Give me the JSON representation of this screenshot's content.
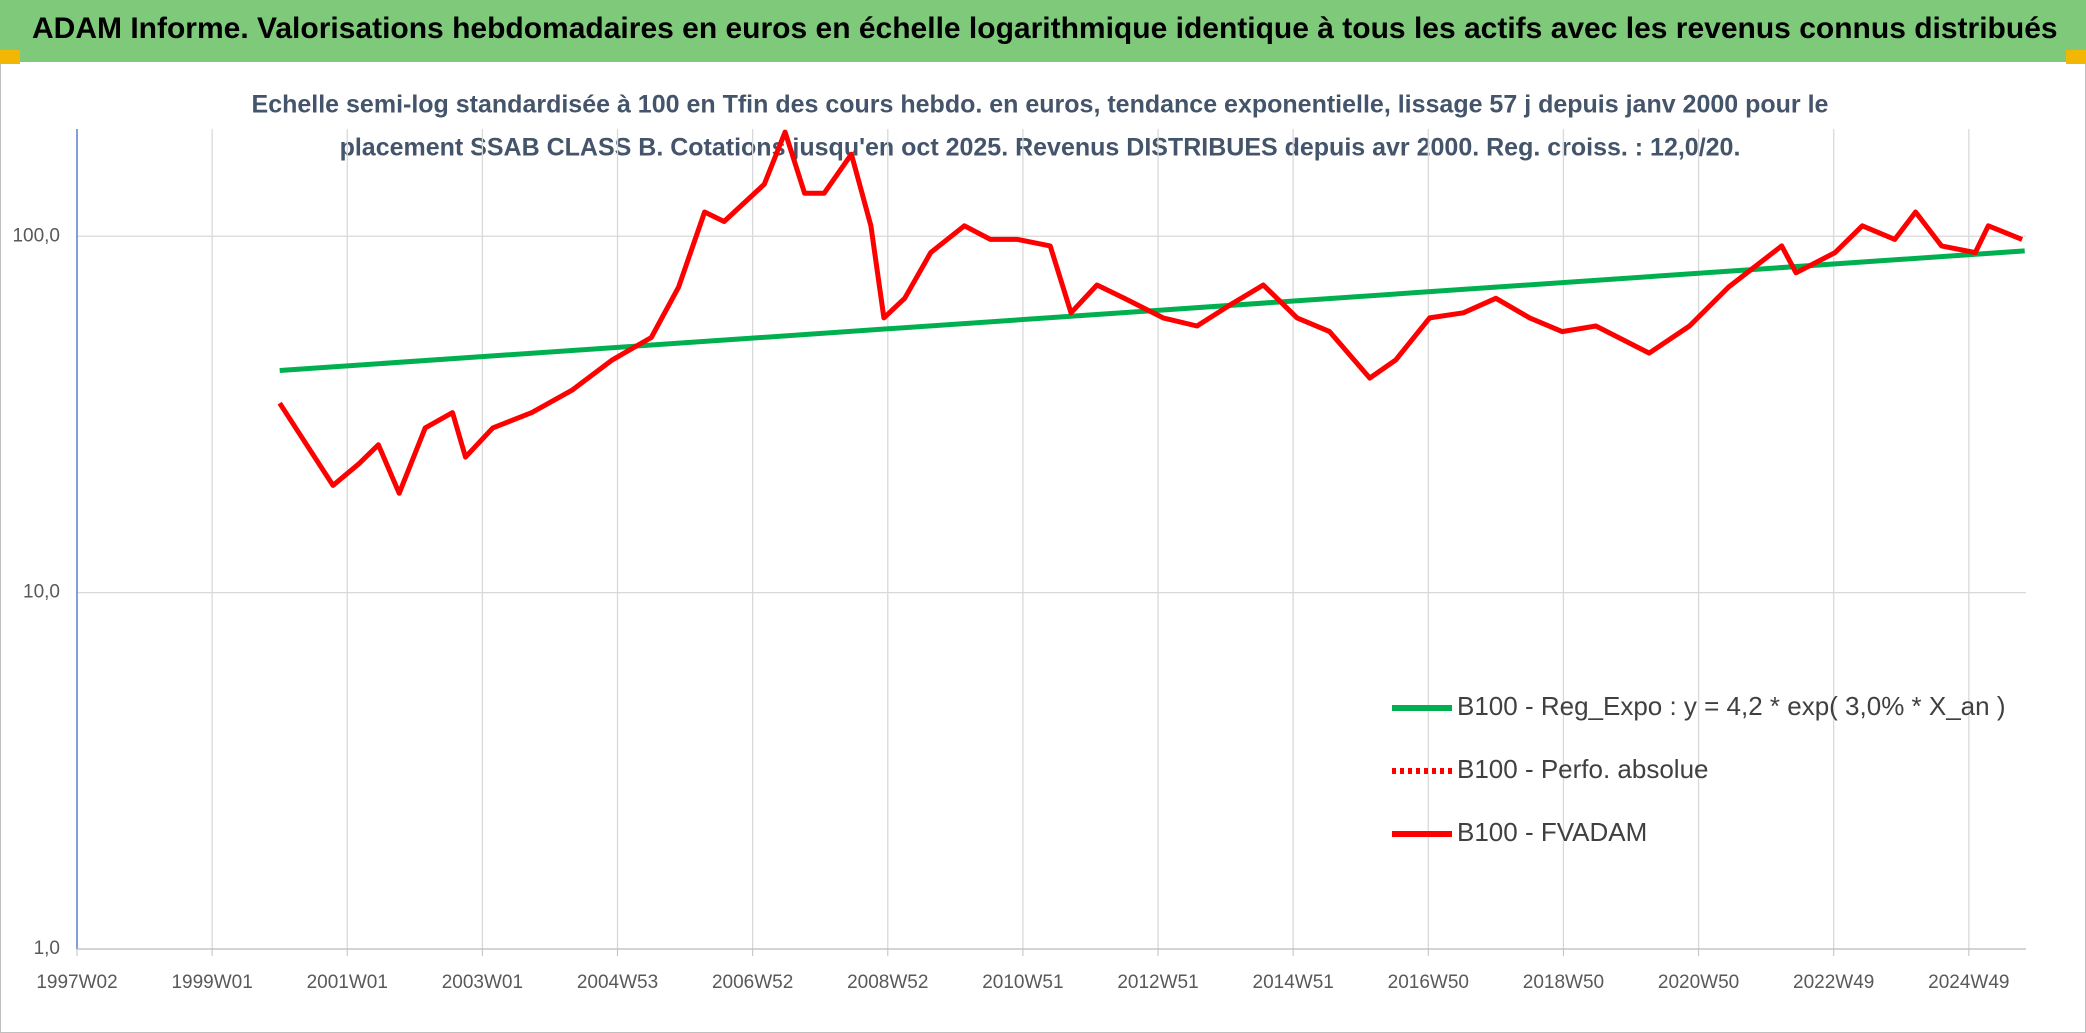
{
  "chart_data": {
    "type": "line",
    "title": "ADAM Informe. Valorisations hebdomadaires en euros en échelle logarithmique identique à tous les actifs avec les revenus connus distribués",
    "subtitle": [
      "Echelle semi-log standardisée à 100 en Tfin des cours hebdo. en euros, tendance exponentielle, lissage 57 j depuis janv 2000 pour le",
      "placement SSAB CLASS B. Cotations jusqu'en oct 2025. Revenus DISTRIBUES depuis avr 2000. Reg. croiss. : 12,0/20."
    ],
    "log_scale": true,
    "grid": true,
    "legend": "right",
    "xlim": [
      0,
      1500
    ],
    "xticks": [
      {
        "value": 0,
        "label": "1997W02"
      },
      {
        "value": 104,
        "label": "1999W01"
      },
      {
        "value": 208,
        "label": "2001W01"
      },
      {
        "value": 312,
        "label": "2003W01"
      },
      {
        "value": 416,
        "label": "2004W53"
      },
      {
        "value": 520,
        "label": "2006W52"
      },
      {
        "value": 624,
        "label": "2008W52"
      },
      {
        "value": 728,
        "label": "2010W51"
      },
      {
        "value": 832,
        "label": "2012W51"
      },
      {
        "value": 936,
        "label": "2014W51"
      },
      {
        "value": 1040,
        "label": "2016W50"
      },
      {
        "value": 1144,
        "label": "2018W50"
      },
      {
        "value": 1248,
        "label": "2020W50"
      },
      {
        "value": 1352,
        "label": "2022W49"
      },
      {
        "value": 1456,
        "label": "2024W49"
      }
    ],
    "ylim": [
      1,
      200
    ],
    "yticks": [
      {
        "value": 1,
        "label": "1,0"
      },
      {
        "value": 10,
        "label": "10,0"
      },
      {
        "value": 100,
        "label": "100,0"
      }
    ],
    "series": [
      {
        "name": "B100 - Reg_Expo : y = 4,2 * exp( 3,0% *  X_an )",
        "color": "#00b050",
        "style": "solid",
        "x": [
          156,
          1499
        ],
        "values": [
          42,
          91
        ]
      },
      {
        "name": "B100 - Perfo. absolue",
        "color": "#ff0000",
        "style": "dotted",
        "x": [],
        "values": []
      },
      {
        "name": "B100 - FVADAM",
        "color": "#ff0000",
        "style": "solid",
        "x": [
          156,
          171,
          197,
          217,
          232,
          248,
          268,
          289,
          299,
          320,
          350,
          381,
          412,
          442,
          463,
          483,
          498,
          529,
          545,
          560,
          575,
          596,
          611,
          621,
          637,
          657,
          683,
          703,
          724,
          749,
          765,
          785,
          806,
          836,
          862,
          887,
          913,
          939,
          964,
          995,
          1015,
          1041,
          1067,
          1092,
          1118,
          1143,
          1169,
          1210,
          1241,
          1271,
          1312,
          1323,
          1353,
          1374,
          1399,
          1415,
          1435,
          1461,
          1471,
          1497
        ],
        "values": [
          34,
          28,
          20,
          23,
          26,
          19,
          29,
          32,
          24,
          29,
          32,
          37,
          45,
          52,
          72,
          117,
          110,
          140,
          196,
          132,
          132,
          170,
          107,
          59,
          67,
          90,
          107,
          98,
          98,
          94,
          61,
          73,
          67,
          59,
          56,
          64,
          73,
          59,
          54,
          40,
          45,
          59,
          61,
          67,
          59,
          54,
          56,
          47,
          56,
          72,
          94,
          79,
          90,
          107,
          98,
          117,
          94,
          90,
          107,
          98
        ]
      }
    ]
  }
}
